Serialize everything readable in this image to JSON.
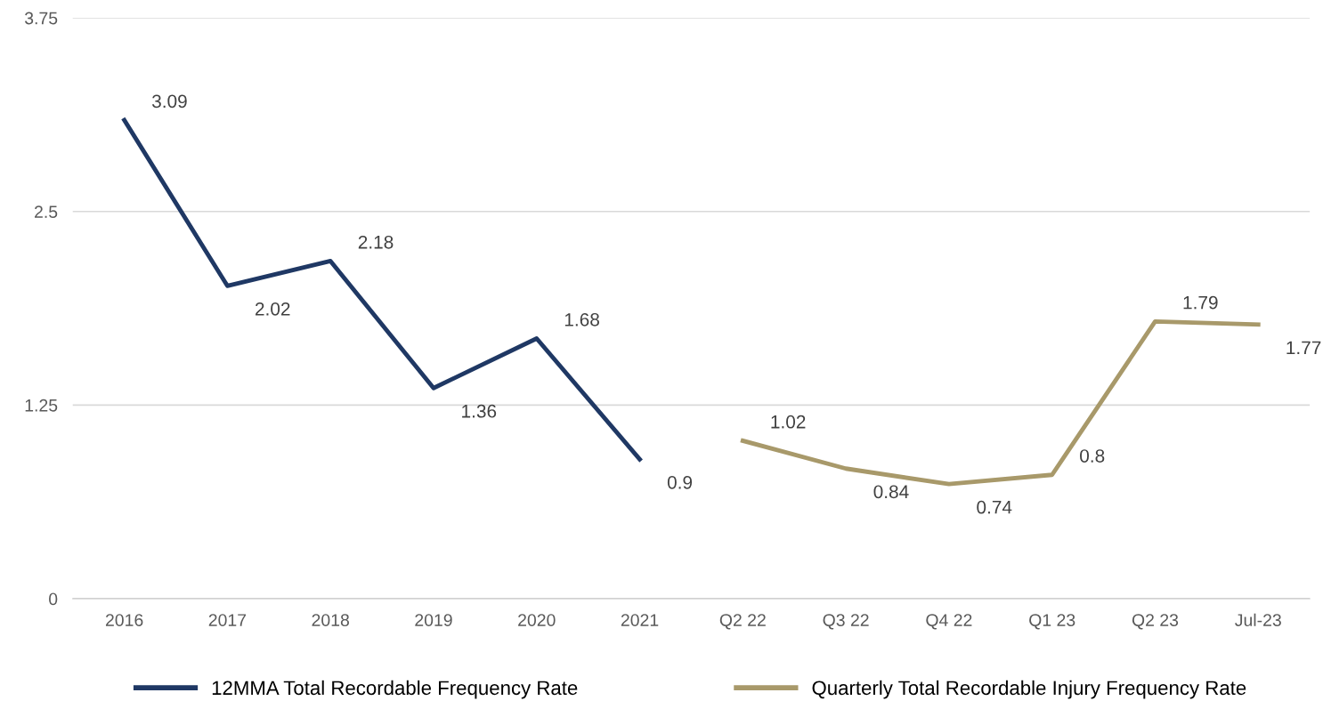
{
  "chart_data": {
    "type": "line",
    "categories": [
      "2016",
      "2017",
      "2018",
      "2019",
      "2020",
      "2021",
      "Q2 22",
      "Q3 22",
      "Q4 22",
      "Q1 23",
      "Q2 23",
      "Jul-23"
    ],
    "series": [
      {
        "name": "12MMA Total Recordable Frequency Rate",
        "color": "#1f3864",
        "values": [
          3.09,
          2.02,
          2.18,
          1.36,
          1.68,
          0.9,
          null,
          null,
          null,
          null,
          null,
          null
        ]
      },
      {
        "name": "Quarterly Total Recordable Injury Frequency Rate",
        "color": "#a8996a",
        "values": [
          null,
          null,
          null,
          null,
          null,
          null,
          1.02,
          0.84,
          0.74,
          0.8,
          1.79,
          1.77
        ]
      }
    ],
    "ylim": [
      0,
      3.75
    ],
    "yticks": [
      0,
      1.25,
      2.5,
      3.75
    ],
    "grid": "y",
    "legend": "bottom",
    "data_labels": true,
    "marker": "none",
    "line_style": "solid"
  }
}
